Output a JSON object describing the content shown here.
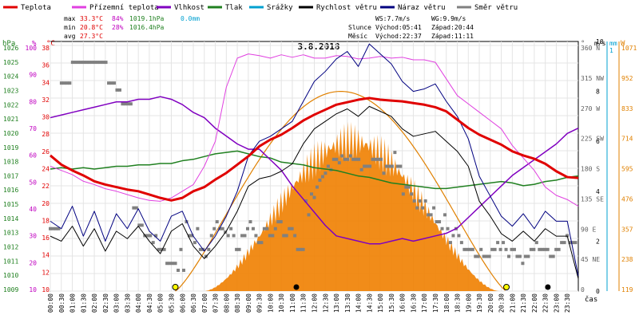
{
  "chart_data": {
    "type": "line",
    "title": "3.8.2018",
    "legend": [
      {
        "name": "Teplota",
        "color": "#e00000"
      },
      {
        "name": "Přízemní teplota",
        "color": "#e040e0"
      },
      {
        "name": "Vlhkost",
        "color": "#8000c0"
      },
      {
        "name": "Tlak",
        "color": "#208020"
      },
      {
        "name": "Srážky",
        "color": "#00a0d0"
      },
      {
        "name": "Rychlost větru",
        "color": "#000000"
      },
      {
        "name": "Náraz větru",
        "color": "#000080"
      },
      {
        "name": "Směr větru",
        "color": "#808080"
      }
    ],
    "stats": {
      "max": {
        "label": "max",
        "temp": "33.3°C",
        "hum": "84%",
        "press": "1019.1hPa",
        "rain": "0.0mm"
      },
      "min": {
        "label": "min",
        "temp": "20.8°C",
        "hum": "28%",
        "press": "1016.4hPa"
      },
      "avg": {
        "label": "avg",
        "temp": "27.3°C"
      }
    },
    "wind_info": {
      "ws": "WS:7.7m/s",
      "wg": "WG:9.9m/s"
    },
    "astro": {
      "sun_label": "Slunce",
      "sun_rise": "Východ:05:41",
      "sun_set": "Západ:20:44",
      "moon_label": "Měsíc",
      "moon_rise": "Východ:22:37",
      "moon_set": "Západ:11:11"
    },
    "axes": {
      "time_ticks": [
        "00:00",
        "00:30",
        "01:00",
        "01:30",
        "02:00",
        "02:30",
        "03:00",
        "03:30",
        "04:00",
        "04:30",
        "05:00",
        "05:30",
        "06:00",
        "06:30",
        "07:00",
        "07:30",
        "08:00",
        "08:30",
        "09:00",
        "09:30",
        "10:00",
        "10:30",
        "11:00",
        "11:30",
        "12:00",
        "12:30",
        "13:00",
        "13:30",
        "14:00",
        "14:30",
        "15:00",
        "15:30",
        "16:00",
        "16:30",
        "17:00",
        "17:30",
        "18:00",
        "18:30",
        "19:00",
        "19:30",
        "20:00",
        "20:30",
        "21:00",
        "21:30",
        "22:00",
        "22:30",
        "23:00",
        "23:30"
      ],
      "x_label": "čas",
      "hpa": {
        "unit": "hPa",
        "ticks": [
          "1026",
          "1025",
          "1024",
          "1023",
          "1022",
          "1021",
          "1020",
          "1019",
          "1018",
          "1017",
          "1016",
          "1015",
          "1014",
          "1013",
          "1012",
          "1011",
          "1010",
          "1009"
        ],
        "color": "#208020"
      },
      "pct": {
        "unit": "%",
        "ticks": [
          "100",
          "90",
          "80",
          "70",
          "60",
          "50",
          "40",
          "30",
          "20",
          "10"
        ],
        "color": "#c000c0"
      },
      "degc": {
        "unit": "°C",
        "ticks": [
          "38",
          "36",
          "34",
          "32",
          "30",
          "28",
          "26",
          "24",
          "22",
          "20",
          "18",
          "16",
          "14",
          "12",
          "10"
        ],
        "color": "#e00000"
      },
      "deg": {
        "unit": "°",
        "ticks": [
          "360 N",
          "315 NW",
          "270 W",
          "225 SW",
          "180 S",
          "135 SE",
          "90 E",
          "45 NE",
          "0"
        ],
        "color": "#606060"
      },
      "ms": {
        "unit": "m/s",
        "ticks": [
          "10",
          "8",
          "6",
          "4",
          "2",
          "0"
        ],
        "color": "#000000"
      },
      "mm": {
        "unit": "mm",
        "ticks": [
          "1"
        ],
        "color": "#00a0d0"
      },
      "w": {
        "unit": "W",
        "ticks": [
          "1071",
          "952",
          "833",
          "714",
          "595",
          "476",
          "357",
          "238",
          "119"
        ],
        "color": "#e08000"
      }
    },
    "ylim_temp": [
      10,
      40
    ],
    "ylim_pressure": [
      1009,
      1027
    ],
    "ylim_humidity": [
      10,
      105
    ],
    "ylim_wind_ms": [
      0,
      10
    ],
    "ylim_dir_deg": [
      0,
      360
    ],
    "ylim_solar_w": [
      0,
      1190
    ],
    "x_hours": [
      0,
      0.5,
      1,
      1.5,
      2,
      2.5,
      3,
      3.5,
      4,
      4.5,
      5,
      5.5,
      6,
      6.5,
      7,
      7.5,
      8,
      8.5,
      9,
      9.5,
      10,
      10.5,
      11,
      11.5,
      12,
      12.5,
      13,
      13.5,
      14,
      14.5,
      15,
      15.5,
      16,
      16.5,
      17,
      17.5,
      18,
      18.5,
      19,
      19.5,
      20,
      20.5,
      21,
      21.5,
      22,
      22.5,
      23,
      23.5,
      24
    ],
    "series": [
      {
        "key": "temp",
        "name": "Teplota",
        "color": "#e00000",
        "values": [
          26.3,
          25.2,
          24.5,
          23.9,
          23.2,
          22.8,
          22.5,
          22.2,
          22.0,
          21.6,
          21.2,
          20.9,
          21.2,
          22.0,
          22.5,
          23.4,
          24.2,
          25.2,
          26.2,
          27.4,
          28.2,
          28.8,
          29.6,
          30.5,
          31.2,
          31.8,
          32.4,
          32.7,
          33.0,
          33.2,
          33.0,
          32.9,
          32.8,
          32.6,
          32.4,
          32.1,
          31.6,
          30.6,
          29.6,
          28.8,
          28.2,
          27.6,
          26.8,
          26.3,
          25.9,
          25.3,
          24.4,
          23.7,
          23.6
        ]
      },
      {
        "key": "ground",
        "name": "Přízemní teplota",
        "color": "#e040e0",
        "values": [
          25.0,
          24.5,
          24.0,
          23.2,
          22.8,
          22.3,
          22.0,
          21.6,
          21.2,
          20.9,
          20.8,
          21.2,
          22.0,
          22.8,
          25.0,
          28.0,
          34.5,
          38.0,
          38.5,
          38.3,
          38.0,
          38.4,
          38.1,
          38.4,
          38.0,
          38.0,
          38.3,
          38.2,
          37.9,
          38.0,
          38.2,
          38.0,
          38.1,
          37.8,
          37.8,
          37.5,
          35.5,
          33.5,
          32.5,
          31.5,
          30.5,
          29.5,
          27.5,
          26.0,
          24.5,
          22.5,
          21.5,
          21.0,
          20.2
        ]
      },
      {
        "key": "humidity",
        "name": "Vlhkost",
        "color": "#8000c0",
        "values": [
          76,
          77,
          78,
          79,
          80,
          81,
          82,
          82,
          83,
          83,
          84,
          83,
          81,
          78,
          76,
          72,
          69,
          66,
          64,
          64,
          60,
          56,
          50,
          45,
          40,
          35,
          31,
          30,
          29,
          28,
          28,
          29,
          30,
          29,
          30,
          31,
          32,
          34,
          38,
          42,
          46,
          50,
          54,
          57,
          60,
          63,
          66,
          70,
          72
        ]
      },
      {
        "key": "pressure",
        "name": "Tlak",
        "color": "#208020",
        "values": [
          1017.8,
          1017.9,
          1017.8,
          1017.9,
          1017.8,
          1017.9,
          1018.0,
          1018.0,
          1018.1,
          1018.1,
          1018.2,
          1018.2,
          1018.4,
          1018.5,
          1018.7,
          1018.9,
          1019.0,
          1019.1,
          1018.9,
          1018.7,
          1018.6,
          1018.3,
          1018.2,
          1018.1,
          1017.9,
          1017.8,
          1017.7,
          1017.5,
          1017.3,
          1017.2,
          1017.0,
          1016.8,
          1016.7,
          1016.6,
          1016.5,
          1016.4,
          1016.4,
          1016.5,
          1016.6,
          1016.7,
          1016.8,
          1016.9,
          1016.8,
          1016.6,
          1016.7,
          1016.9,
          1017.0,
          1017.2,
          1017.3
        ]
      },
      {
        "key": "wind",
        "name": "Rychlost větru",
        "color": "#000000",
        "values": [
          2.2,
          2.0,
          2.6,
          1.8,
          2.5,
          1.6,
          2.4,
          2.1,
          2.6,
          2.0,
          1.5,
          2.4,
          2.7,
          1.8,
          1.3,
          1.8,
          2.4,
          3.2,
          4.2,
          4.5,
          4.6,
          4.8,
          5.1,
          5.9,
          6.5,
          6.8,
          7.1,
          7.3,
          7.0,
          7.4,
          7.2,
          7.0,
          6.5,
          6.2,
          6.3,
          6.4,
          6.0,
          5.6,
          5.0,
          3.6,
          3.0,
          2.3,
          2.0,
          2.4,
          2.0,
          2.5,
          2.2,
          2.2,
          0.5
        ]
      },
      {
        "key": "gust",
        "name": "Náraz větru",
        "color": "#000080",
        "values": [
          2.8,
          2.5,
          3.4,
          2.2,
          3.2,
          2.0,
          3.1,
          2.5,
          3.3,
          2.4,
          2.0,
          3.0,
          3.2,
          2.2,
          1.6,
          2.2,
          3.0,
          4.0,
          5.4,
          6.0,
          6.2,
          6.5,
          6.8,
          7.6,
          8.4,
          8.8,
          9.3,
          9.6,
          9.0,
          9.9,
          9.5,
          9.1,
          8.4,
          8.0,
          8.1,
          8.3,
          7.6,
          7.0,
          6.1,
          4.6,
          3.8,
          3.0,
          2.6,
          3.1,
          2.5,
          3.2,
          2.8,
          2.8,
          0.6
        ]
      }
    ],
    "wind_dir_deg": [
      90,
      90,
      90,
      90,
      300,
      300,
      300,
      300,
      330,
      330,
      330,
      330,
      330,
      330,
      330,
      330,
      330,
      330,
      330,
      330,
      330,
      300,
      300,
      300,
      290,
      290,
      270,
      270,
      270,
      270,
      120,
      120,
      95,
      95,
      80,
      80,
      80,
      70,
      80,
      60,
      60,
      60,
      40,
      40,
      40,
      40,
      30,
      60,
      30,
      100,
      80,
      80,
      70,
      90,
      60,
      60,
      50,
      60,
      80,
      90,
      100,
      90,
      90,
      85,
      80,
      90,
      80,
      60,
      60,
      80,
      80,
      90,
      100,
      90,
      80,
      70,
      70,
      90,
      90,
      80,
      80,
      90,
      100,
      100,
      80,
      80,
      90,
      90,
      80,
      60,
      60,
      60,
      130,
      110,
      140,
      135,
      150,
      160,
      165,
      170,
      180,
      175,
      190,
      190,
      185,
      195,
      190,
      190,
      195,
      190,
      190,
      190,
      175,
      180,
      180,
      180,
      190,
      190,
      190,
      190,
      170,
      180,
      180,
      180,
      200,
      180,
      180,
      140,
      150,
      150,
      140,
      130,
      120,
      130,
      120,
      130,
      110,
      110,
      120,
      100,
      100,
      90,
      110,
      90,
      70,
      80,
      90,
      80,
      70,
      60,
      60,
      60,
      60,
      50,
      50,
      60,
      50,
      50,
      50,
      60,
      60,
      70,
      60,
      70,
      60,
      50,
      60,
      60,
      50,
      50,
      40,
      50,
      50,
      60,
      60,
      70,
      60,
      60,
      60,
      60,
      50,
      50,
      60,
      60,
      70,
      70,
      80,
      70,
      70,
      70
    ],
    "solar": {
      "max_w": 952,
      "sunrise": 5.68,
      "sunset": 20.73
    },
    "markers": {
      "sun_rise": "05:41",
      "sun_set": "20:44",
      "moon_rise": "22:37",
      "moon_set": "11:11"
    }
  }
}
